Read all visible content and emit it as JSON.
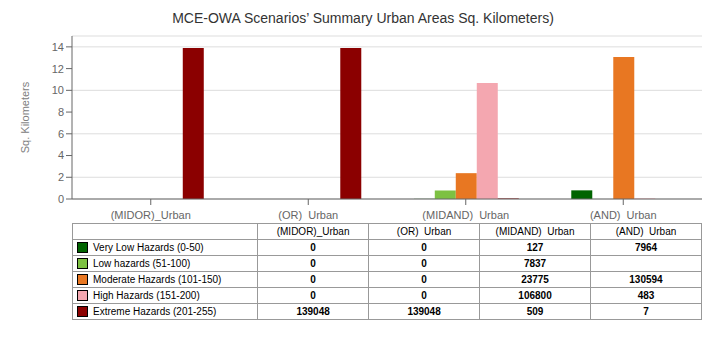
{
  "chart_data": {
    "type": "bar",
    "title": "MCE-OWA Scenarios’ Summary Urban Areas Sq. Kilometers)",
    "ylabel": "Sq. Kilometers",
    "categories": [
      "(MIDOR)_Urban",
      "(OR)  Urban",
      "(MIDAND)  Urban",
      "(AND)  Urban"
    ],
    "series": [
      {
        "name": "Very Low Hazards (0-50)",
        "color": "#006400",
        "values": [
          0,
          0,
          0.0127,
          0.7964
        ]
      },
      {
        "name": "Low hazards (51-100)",
        "color": "#7dc142",
        "values": [
          0,
          0,
          0.7837,
          0
        ]
      },
      {
        "name": "Moderate Hazards (101-150)",
        "color": "#e87722",
        "values": [
          0,
          0,
          2.3775,
          13.0594
        ]
      },
      {
        "name": "High Hazards (151-200)",
        "color": "#f4a7b0",
        "values": [
          0,
          0,
          10.68,
          0.0483
        ]
      },
      {
        "name": "Extreme Hazards (201-255)",
        "color": "#8b0000",
        "values": [
          13.9048,
          13.9048,
          0.0509,
          0.0007
        ]
      }
    ],
    "ylim": [
      0,
      15
    ],
    "yticks": [
      0,
      2,
      4,
      6,
      8,
      10,
      12,
      14
    ],
    "grid": true,
    "table_values": [
      [
        0,
        0,
        127,
        7964
      ],
      [
        0,
        0,
        7837,
        null
      ],
      [
        0,
        0,
        23775,
        130594
      ],
      [
        0,
        0,
        106800,
        483
      ],
      [
        139048,
        139048,
        509,
        7
      ]
    ]
  }
}
